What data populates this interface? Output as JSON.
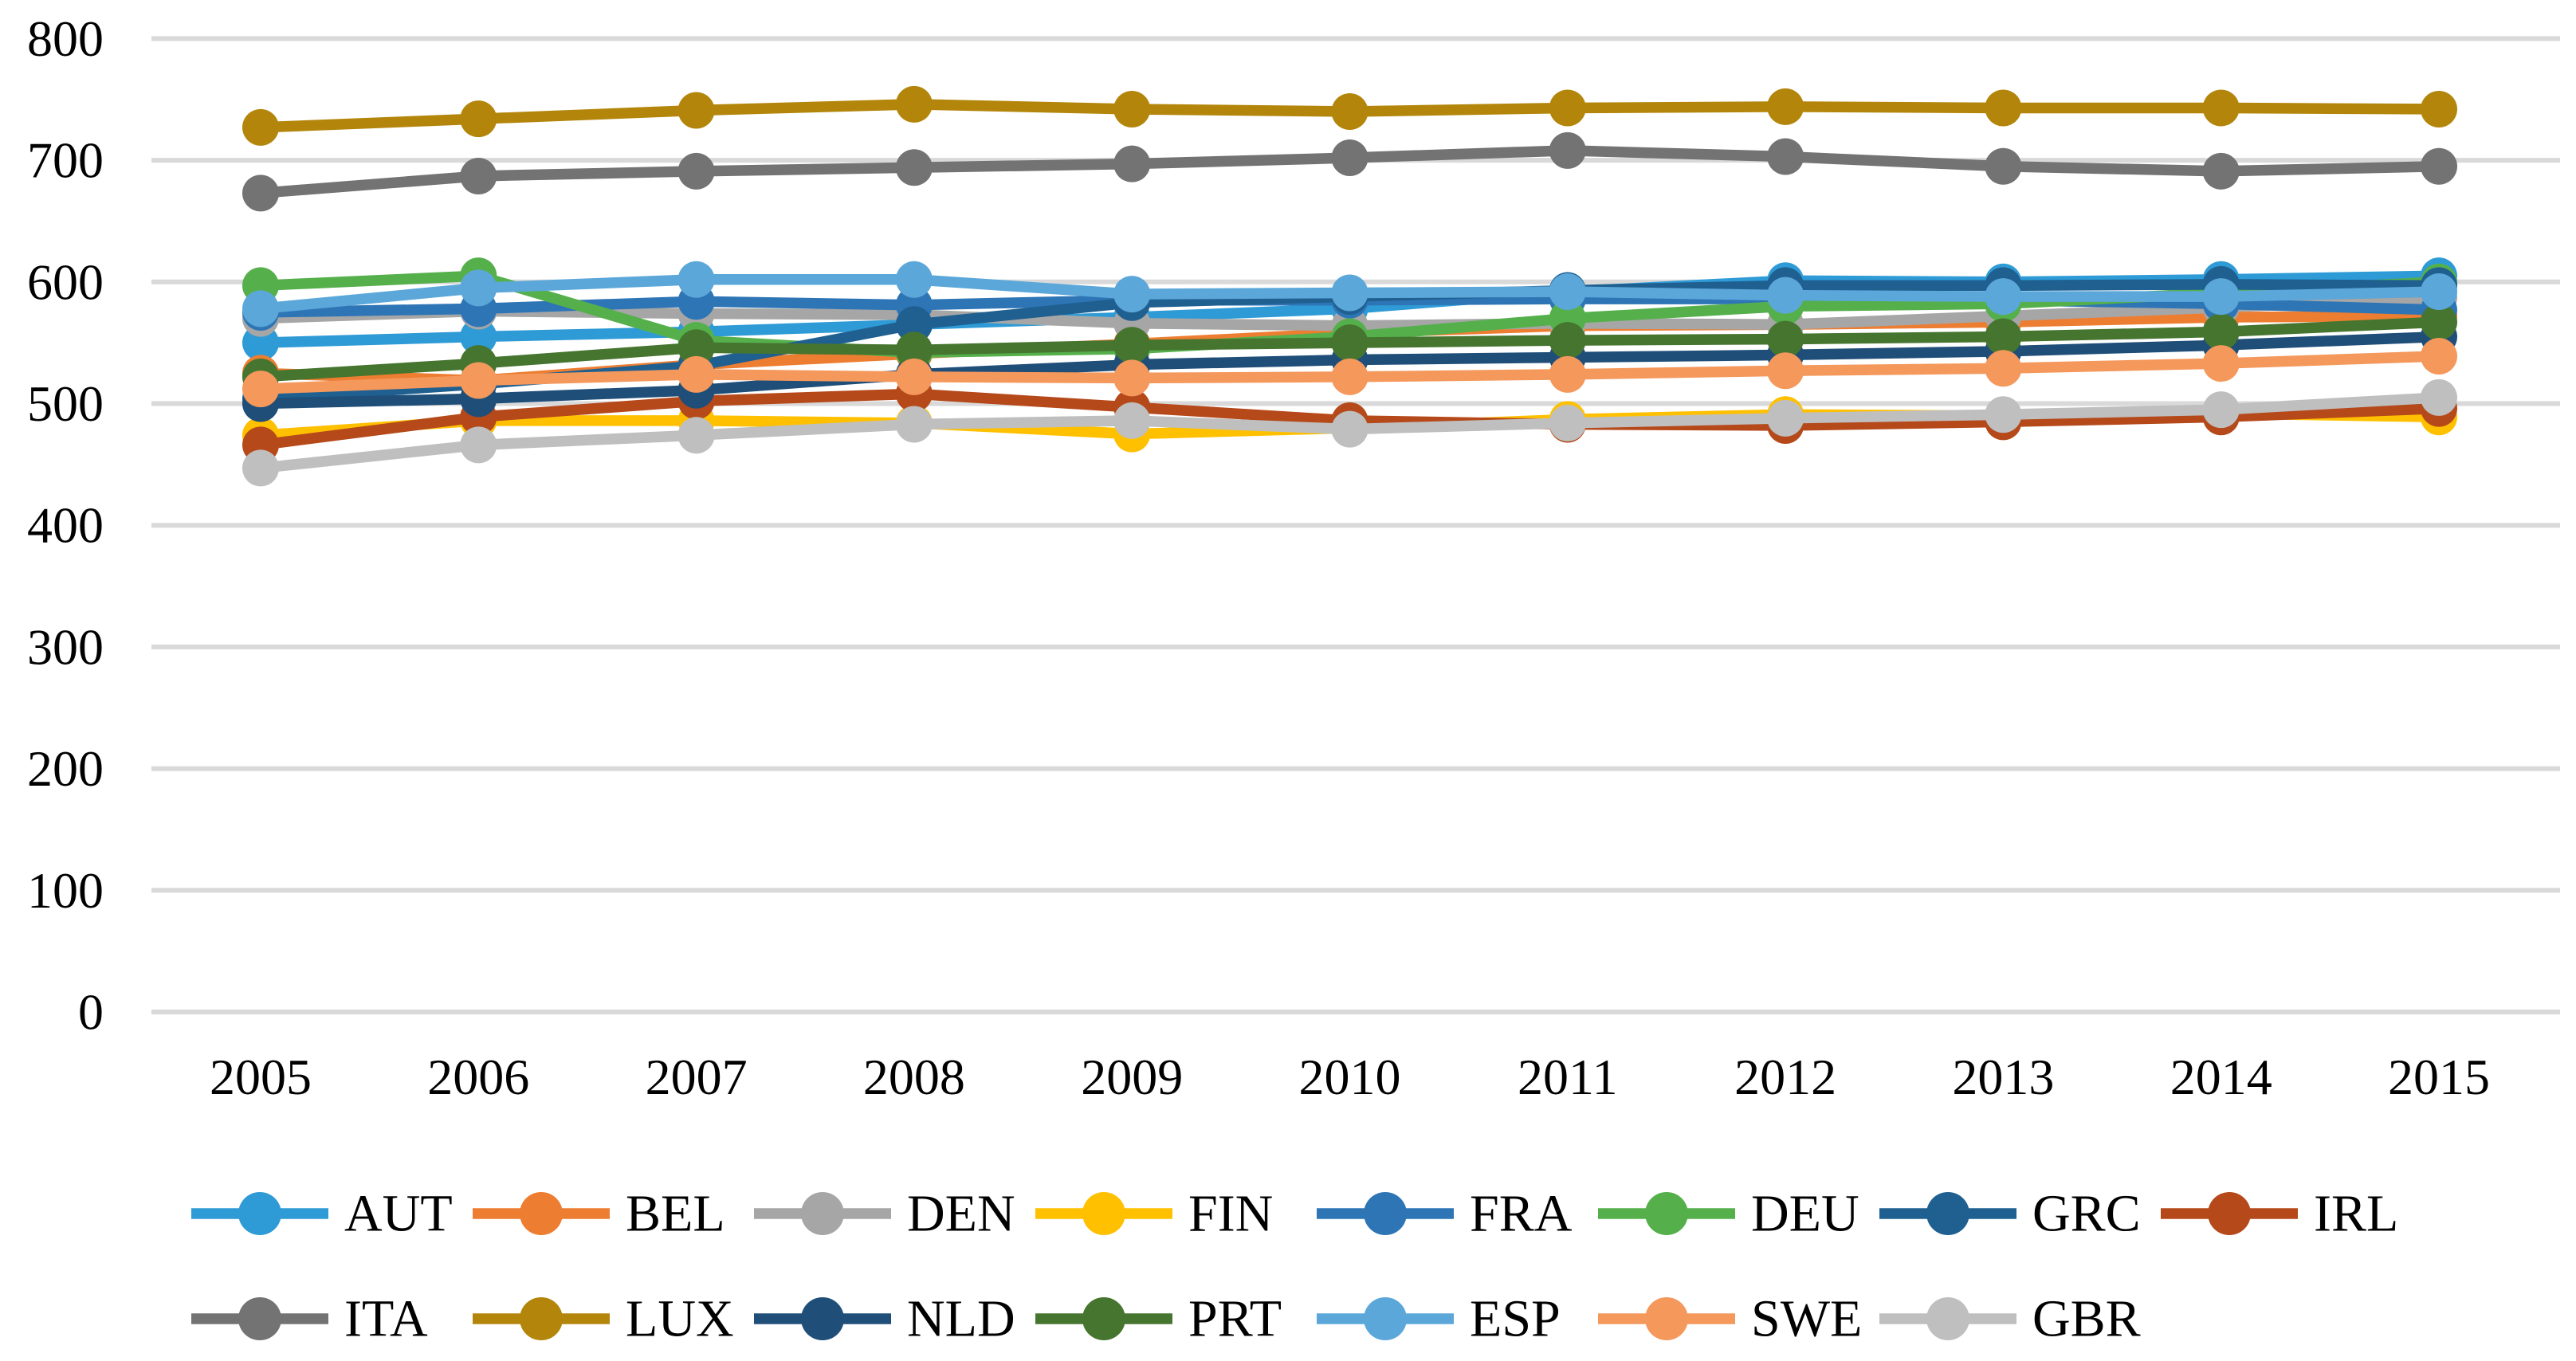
{
  "figure": {
    "background": "#FFFFFF",
    "text_color": "#000000",
    "gridline_color": "#D9D9D9"
  },
  "chart_data": {
    "type": "line",
    "title": "",
    "xlabel": "",
    "ylabel": "",
    "x": [
      2005,
      2006,
      2007,
      2008,
      2009,
      2010,
      2011,
      2012,
      2013,
      2014,
      2015
    ],
    "x_tick_labels": [
      "2005",
      "2006",
      "2007",
      "2008",
      "2009",
      "2010",
      "2011",
      "2012",
      "2013",
      "2014",
      "2015"
    ],
    "ylim": [
      0,
      800
    ],
    "ytick_step": 100,
    "y_tick_labels": [
      "0",
      "100",
      "200",
      "300",
      "400",
      "500",
      "600",
      "700",
      "800"
    ],
    "grid": "horizontal",
    "marker": "circle",
    "legend_position": "bottom",
    "legend_rows": [
      [
        "AUT",
        "BEL",
        "DEN",
        "FIN",
        "FRA",
        "DEU",
        "GRC",
        "IRL"
      ],
      [
        "ITA",
        "LUX",
        "NLD",
        "PRT",
        "ESP",
        "SWE",
        "GBR"
      ]
    ],
    "series": [
      {
        "name": "AUT",
        "color": "#2E9BD6",
        "values": [
          550,
          555,
          559,
          565,
          571,
          578,
          592,
          601,
          600,
          602,
          605
        ]
      },
      {
        "name": "BEL",
        "color": "#ED7D31",
        "values": [
          525,
          519,
          532,
          541,
          549,
          558,
          564,
          565,
          567,
          571,
          572
        ]
      },
      {
        "name": "DEN",
        "color": "#A6A6A6",
        "values": [
          570,
          576,
          574,
          573,
          566,
          564,
          566,
          565,
          572,
          579,
          587
        ]
      },
      {
        "name": "FIN",
        "color": "#FFC000",
        "values": [
          474,
          486,
          486,
          484,
          475,
          480,
          487,
          491,
          490,
          492,
          489
        ]
      },
      {
        "name": "FRA",
        "color": "#2E75B6",
        "values": [
          575,
          578,
          584,
          581,
          585,
          585,
          586,
          586,
          585,
          582,
          577
        ]
      },
      {
        "name": "DEU",
        "color": "#55B04C",
        "values": [
          597,
          605,
          552,
          542,
          545,
          555,
          570,
          580,
          582,
          591,
          600
        ]
      },
      {
        "name": "GRC",
        "color": "#1F6091",
        "values": [
          504,
          516,
          531,
          565,
          583,
          588,
          593,
          597,
          597,
          598,
          597
        ]
      },
      {
        "name": "IRL",
        "color": "#B5491A",
        "values": [
          466,
          489,
          502,
          508,
          497,
          486,
          483,
          482,
          485,
          489,
          496
        ]
      },
      {
        "name": "ITA",
        "color": "#737373",
        "values": [
          673,
          687,
          691,
          694,
          697,
          702,
          708,
          703,
          695,
          691,
          695
        ]
      },
      {
        "name": "LUX",
        "color": "#B3860B",
        "values": [
          727,
          734,
          741,
          746,
          742,
          740,
          743,
          744,
          743,
          743,
          742
        ]
      },
      {
        "name": "NLD",
        "color": "#1F4E79",
        "values": [
          500,
          504,
          511,
          524,
          532,
          536,
          538,
          540,
          543,
          548,
          555
        ]
      },
      {
        "name": "PRT",
        "color": "#46752F",
        "values": [
          522,
          533,
          546,
          544,
          548,
          550,
          552,
          553,
          555,
          559,
          567
        ]
      },
      {
        "name": "ESP",
        "color": "#5BA7D9",
        "values": [
          578,
          595,
          602,
          602,
          590,
          591,
          592,
          589,
          588,
          588,
          592
        ]
      },
      {
        "name": "SWE",
        "color": "#F4985C",
        "values": [
          512,
          519,
          524,
          522,
          521,
          522,
          524,
          527,
          529,
          533,
          539
        ]
      },
      {
        "name": "GBR",
        "color": "#BFBFBF",
        "values": [
          447,
          466,
          474,
          483,
          486,
          479,
          484,
          488,
          491,
          495,
          505
        ]
      }
    ]
  }
}
